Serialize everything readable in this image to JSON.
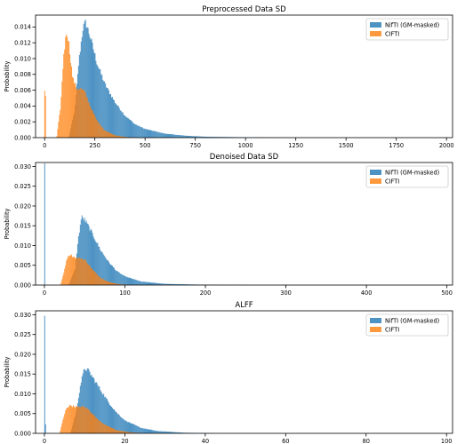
{
  "colors": {
    "nifti": "#1f77b4",
    "cifti": "#ff7f0e",
    "axis": "#000000",
    "background": "#ffffff"
  },
  "chart_data": [
    {
      "type": "histogram",
      "title": "Preprocessed Data SD",
      "xlabel": "",
      "ylabel": "Probability",
      "xlim": [
        -45,
        2030
      ],
      "ylim": [
        0,
        0.0155
      ],
      "xticks": [
        0,
        250,
        500,
        750,
        1000,
        1250,
        1500,
        1750,
        2000
      ],
      "xtick_labels": [
        "0",
        "250",
        "500",
        "750",
        "1000",
        "1250",
        "1500",
        "1750",
        "2000"
      ],
      "yticks": [
        0,
        0.002,
        0.004,
        0.006,
        0.008,
        0.01,
        0.012,
        0.014
      ],
      "ytick_labels": [
        "0.000",
        "0.002",
        "0.004",
        "0.006",
        "0.008",
        "0.010",
        "0.012",
        "0.014"
      ],
      "legend": {
        "position": "top-right",
        "entries": [
          "NifTI (GM-masked)",
          "CIFTI"
        ]
      },
      "grid": false,
      "series": [
        {
          "name": "NifTI (GM-masked)",
          "color_key": "nifti",
          "x": [
            0,
            120,
            150,
            170,
            190,
            205,
            230,
            260,
            300,
            350,
            400,
            450,
            500,
            600,
            700,
            800,
            1000,
            1200,
            1500,
            2000
          ],
          "y": [
            0,
            0,
            0.0035,
            0.0095,
            0.0138,
            0.0146,
            0.0125,
            0.0095,
            0.0068,
            0.0045,
            0.0028,
            0.0017,
            0.0011,
            0.0005,
            0.00025,
            0.00012,
            5e-05,
            2e-05,
            1e-05,
            0
          ]
        },
        {
          "name": "CIFTI",
          "color_key": "cifti",
          "x": [
            0,
            4,
            9,
            60,
            80,
            95,
            110,
            120,
            140,
            160,
            180,
            200,
            230,
            260,
            300,
            350,
            400,
            450
          ],
          "y": [
            0.006,
            0.006,
            0,
            0,
            0.004,
            0.0105,
            0.0136,
            0.0122,
            0.0075,
            0.0062,
            0.0062,
            0.0058,
            0.0038,
            0.0022,
            0.0009,
            0.0003,
            0.0001,
            0
          ]
        }
      ]
    },
    {
      "type": "histogram",
      "title": "Denoised Data SD",
      "xlabel": "",
      "ylabel": "Probability",
      "xlim": [
        -11,
        507
      ],
      "ylim": [
        0,
        0.031
      ],
      "xticks": [
        0,
        100,
        200,
        300,
        400,
        500
      ],
      "xtick_labels": [
        "0",
        "100",
        "200",
        "300",
        "400",
        "500"
      ],
      "yticks": [
        0,
        0.005,
        0.01,
        0.015,
        0.02,
        0.025,
        0.03
      ],
      "ytick_labels": [
        "0.000",
        "0.005",
        "0.010",
        "0.015",
        "0.020",
        "0.025",
        "0.030"
      ],
      "legend": {
        "position": "top-right",
        "entries": [
          "NifTI (GM-masked)",
          "CIFTI"
        ]
      },
      "grid": false,
      "series": [
        {
          "name": "NifTI (GM-masked)",
          "color_key": "nifti",
          "x": [
            0,
            0.4,
            1.2,
            30,
            38,
            42,
            46,
            50,
            55,
            60,
            70,
            80,
            90,
            100,
            120,
            150,
            200,
            250
          ],
          "y": [
            0.03,
            0.03,
            0,
            0,
            0.004,
            0.0115,
            0.0172,
            0.0165,
            0.0148,
            0.0128,
            0.0088,
            0.0058,
            0.0035,
            0.0022,
            0.0009,
            0.0003,
            8e-05,
            0
          ]
        },
        {
          "name": "CIFTI",
          "color_key": "cifti",
          "x": [
            0,
            20,
            24,
            28,
            32,
            36,
            40,
            45,
            50,
            55,
            60,
            70,
            80,
            90,
            100,
            120
          ],
          "y": [
            0,
            0,
            0.003,
            0.0068,
            0.0078,
            0.0072,
            0.0068,
            0.0068,
            0.0064,
            0.0052,
            0.0038,
            0.0018,
            0.0008,
            0.0003,
            0.0001,
            0
          ]
        }
      ]
    },
    {
      "type": "histogram",
      "title": "ALFF",
      "xlabel": "",
      "ylabel": "Probability",
      "xlim": [
        -2.2,
        101.5
      ],
      "ylim": [
        0,
        0.031
      ],
      "xticks": [
        0,
        20,
        40,
        60,
        80,
        100
      ],
      "xtick_labels": [
        "0",
        "20",
        "40",
        "60",
        "80",
        "100"
      ],
      "yticks": [
        0,
        0.005,
        0.01,
        0.015,
        0.02,
        0.025,
        0.03
      ],
      "ytick_labels": [
        "0.000",
        "0.005",
        "0.010",
        "0.015",
        "0.020",
        "0.025",
        "0.030"
      ],
      "legend": {
        "position": "top-right",
        "entries": [
          "NifTI (GM-masked)",
          "CIFTI"
        ]
      },
      "grid": false,
      "series": [
        {
          "name": "NifTI (GM-masked)",
          "color_key": "nifti",
          "x": [
            0,
            0.1,
            0.3,
            6.5,
            8,
            9,
            10,
            11,
            12,
            14,
            16,
            18,
            20,
            24,
            28,
            35,
            45
          ],
          "y": [
            0.03,
            0.03,
            0,
            0,
            0.006,
            0.0125,
            0.0165,
            0.0158,
            0.0142,
            0.011,
            0.0078,
            0.0052,
            0.0033,
            0.0014,
            0.0006,
            0.00015,
            0
          ]
        },
        {
          "name": "CIFTI",
          "color_key": "cifti",
          "x": [
            0,
            3.8,
            4.5,
            5.5,
            6.5,
            7.5,
            8.5,
            9.5,
            10.5,
            11.5,
            13,
            15,
            18,
            21,
            25
          ],
          "y": [
            0,
            0,
            0.003,
            0.0065,
            0.0071,
            0.0068,
            0.0066,
            0.0068,
            0.0064,
            0.0055,
            0.0038,
            0.0022,
            0.0008,
            0.0003,
            0
          ]
        }
      ]
    }
  ]
}
